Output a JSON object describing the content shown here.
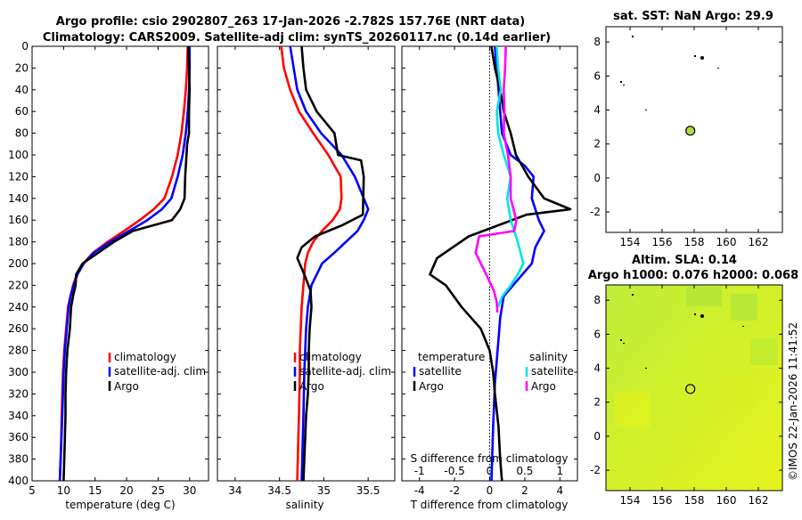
{
  "title_line1": "Argo profile: csio 2902807_263 17-Jan-2026 -2.782S 157.76E (NRT data)",
  "title_line2": "Climatology: CARS2009. Satellite-adj clim: synTS_20260117.nc (0.14d earlier)",
  "map1_title": "sat. SST: NaN Argo: 29.9",
  "map2_title1": "Altim. SLA: 0.14",
  "map2_title2": "Argo h1000: 0.076 h2000: 0.068",
  "timestamp": "©IMOS 22-Jan-2026 11:41:52",
  "legend_temp_header": "temperature",
  "legend_sal_header": "salinity",
  "colors": {
    "climatology": "#ff0000",
    "satellite": "#0000ff",
    "argo": "#000000",
    "sat_salinity": "#00e5e5",
    "argo_salinity": "#ff00ff",
    "sat_field": "#ffffff",
    "sla_field": "#c6f02c",
    "argo_marker": "#a8e040"
  },
  "chart_data": [
    {
      "type": "line",
      "id": "temp",
      "xlabel": "temperature (deg C)",
      "ylabel": "",
      "xlim": [
        5,
        33
      ],
      "ylim": [
        400,
        0
      ],
      "xticks": [
        5,
        10,
        15,
        20,
        25,
        30
      ],
      "yticks": [
        0,
        20,
        40,
        60,
        80,
        100,
        120,
        140,
        160,
        180,
        200,
        220,
        240,
        260,
        280,
        300,
        320,
        340,
        360,
        380,
        400
      ],
      "legend": [
        "climatology",
        "satellite-adj. clim",
        "Argo"
      ],
      "series": [
        {
          "name": "climatology",
          "color": "#ff0000",
          "x": [
            29.7,
            29.6,
            29.4,
            29.1,
            28.7,
            28.1,
            27.2,
            26.0,
            24.3,
            22.1,
            19.6,
            17.0,
            14.7,
            13.1,
            12.1,
            11.5,
            11.1,
            10.7,
            10.4,
            10.1,
            9.9,
            9.7,
            9.6,
            9.4
          ],
          "y": [
            0,
            20,
            40,
            60,
            80,
            100,
            120,
            140,
            150,
            160,
            170,
            180,
            190,
            200,
            210,
            220,
            230,
            240,
            260,
            280,
            300,
            340,
            370,
            400
          ]
        },
        {
          "name": "satellite-adj. clim",
          "color": "#0000ff",
          "x": [
            30.0,
            30.0,
            29.9,
            29.7,
            29.4,
            28.9,
            28.1,
            27.1,
            25.6,
            23.3,
            20.4,
            17.4,
            14.8,
            13.2,
            12.2,
            11.6,
            11.1,
            10.8,
            10.5,
            10.2,
            10.0,
            9.8,
            9.6,
            9.4
          ],
          "y": [
            0,
            20,
            40,
            60,
            80,
            100,
            120,
            140,
            150,
            160,
            170,
            180,
            190,
            200,
            210,
            220,
            230,
            240,
            260,
            280,
            300,
            340,
            370,
            400
          ]
        },
        {
          "name": "Argo",
          "color": "#000000",
          "x": [
            29.8,
            29.9,
            30.0,
            29.9,
            29.9,
            29.6,
            29.5,
            29.3,
            29.2,
            28.5,
            27.2,
            21.0,
            18.0,
            15.5,
            13.0,
            12.0,
            11.9,
            11.5,
            11.2,
            11.0,
            10.6,
            10.4,
            10.3,
            10.3,
            10.2,
            10.1,
            10.0
          ],
          "y": [
            0,
            20,
            40,
            60,
            80,
            90,
            100,
            120,
            140,
            150,
            160,
            170,
            180,
            190,
            200,
            210,
            220,
            230,
            240,
            260,
            280,
            300,
            320,
            340,
            360,
            380,
            400
          ]
        }
      ]
    },
    {
      "type": "line",
      "id": "sal",
      "xlabel": "salinity",
      "ylabel": "",
      "xlim": [
        33.8,
        35.8
      ],
      "ylim": [
        400,
        0
      ],
      "xticks": [
        34,
        34.5,
        35,
        35.5
      ],
      "yticks": [],
      "legend": [
        "climatology",
        "satellite-adj. clim",
        "Argo"
      ],
      "series": [
        {
          "name": "climatology",
          "color": "#ff0000",
          "x": [
            34.52,
            34.55,
            34.62,
            34.72,
            34.88,
            35.05,
            35.19,
            35.2,
            35.18,
            35.1,
            34.98,
            34.88,
            34.82,
            34.79,
            34.77,
            34.75,
            34.74,
            34.73,
            34.73,
            34.72,
            34.71,
            34.7
          ],
          "y": [
            0,
            20,
            40,
            60,
            80,
            100,
            120,
            140,
            150,
            160,
            170,
            180,
            190,
            200,
            220,
            240,
            260,
            280,
            300,
            340,
            370,
            400
          ]
        },
        {
          "name": "satellite-adj. clim",
          "color": "#0000ff",
          "x": [
            34.62,
            34.66,
            34.7,
            34.8,
            34.97,
            35.2,
            35.35,
            35.45,
            35.5,
            35.45,
            35.38,
            35.25,
            35.12,
            34.98,
            34.86,
            34.82,
            34.8,
            34.79,
            34.78,
            34.77,
            34.76,
            34.75
          ],
          "y": [
            0,
            20,
            40,
            60,
            80,
            100,
            120,
            140,
            150,
            160,
            170,
            180,
            190,
            200,
            220,
            240,
            260,
            280,
            300,
            340,
            370,
            400
          ]
        },
        {
          "name": "Argo",
          "color": "#000000",
          "x": [
            34.75,
            34.77,
            34.8,
            34.92,
            35.12,
            35.16,
            35.42,
            35.45,
            35.44,
            35.2,
            34.9,
            34.75,
            34.7,
            34.78,
            34.85,
            34.86,
            34.84,
            34.83,
            34.83,
            34.82,
            34.8,
            34.79,
            34.78,
            34.77
          ],
          "y": [
            0,
            20,
            40,
            60,
            80,
            100,
            105,
            120,
            155,
            165,
            175,
            185,
            195,
            210,
            225,
            240,
            260,
            280,
            300,
            320,
            340,
            360,
            380,
            400
          ]
        }
      ]
    },
    {
      "type": "line",
      "id": "diff",
      "xlabel": "T difference from climatology",
      "x2label": "S difference from climatology",
      "xlim": [
        -5,
        5
      ],
      "ylim": [
        400,
        0
      ],
      "xticks": [
        -4,
        -2,
        0,
        2,
        4
      ],
      "x2ticks": [
        -1,
        -0.5,
        0,
        0.5,
        1
      ],
      "x2lim": [
        -1.25,
        1.25
      ],
      "yticks": [],
      "legend_temperature": [
        "satellite",
        "Argo"
      ],
      "legend_salinity": [
        "satellite",
        "Argo"
      ],
      "series": [
        {
          "name": "T satellite",
          "color": "#0000ff",
          "axis": "T",
          "x": [
            0.3,
            0.4,
            0.5,
            0.6,
            0.7,
            1.2,
            2.0,
            2.5,
            2.4,
            2.8,
            3.1,
            2.6,
            2.4,
            1.6,
            0.8,
            0.6,
            0.5,
            0.4,
            0.3,
            0.2,
            0.1
          ],
          "y": [
            0,
            20,
            40,
            60,
            80,
            100,
            110,
            120,
            140,
            160,
            170,
            185,
            200,
            215,
            230,
            250,
            270,
            290,
            310,
            350,
            400
          ]
        },
        {
          "name": "T Argo",
          "color": "#000000",
          "axis": "T",
          "x": [
            0.1,
            0.3,
            0.6,
            0.8,
            1.2,
            1.5,
            2.2,
            3.1,
            4.6,
            2.1,
            -1.2,
            -3.0,
            -3.4,
            -2.5,
            -1.6,
            -0.5,
            0.0,
            0.2,
            0.3,
            0.5,
            0.6,
            0.7
          ],
          "y": [
            0,
            20,
            40,
            60,
            80,
            100,
            120,
            140,
            150,
            155,
            175,
            195,
            210,
            220,
            240,
            260,
            280,
            300,
            320,
            350,
            380,
            400
          ]
        },
        {
          "name": "S satellite",
          "color": "#00e5e5",
          "axis": "S",
          "x": [
            0.1,
            0.12,
            0.16,
            0.1,
            0.12,
            0.2,
            0.3,
            0.25,
            0.3,
            0.4,
            0.48,
            0.4,
            0.3,
            0.18,
            0.12
          ],
          "y": [
            0,
            20,
            40,
            60,
            80,
            100,
            120,
            140,
            160,
            180,
            200,
            210,
            220,
            230,
            240
          ]
        },
        {
          "name": "S Argo",
          "color": "#ff00ff",
          "axis": "S",
          "x": [
            0.23,
            0.22,
            0.2,
            0.21,
            0.2,
            0.26,
            0.3,
            0.3,
            0.38,
            0.35,
            -0.15,
            -0.2,
            -0.05,
            0.06,
            0.1,
            0.11
          ],
          "y": [
            0,
            20,
            40,
            60,
            80,
            100,
            120,
            140,
            160,
            170,
            175,
            190,
            210,
            225,
            235,
            245
          ]
        }
      ]
    },
    {
      "type": "heatmap",
      "id": "sst_map",
      "title": "sat. SST: NaN Argo: 29.9",
      "xlim": [
        152.5,
        163.5
      ],
      "ylim": [
        -3.2,
        8.9
      ],
      "xticks": [
        154,
        156,
        158,
        160,
        162
      ],
      "yticks": [
        -2,
        0,
        2,
        4,
        6,
        8
      ],
      "argo_position": {
        "lon": 157.76,
        "lat": 2.78
      }
    },
    {
      "type": "heatmap",
      "id": "sla_map",
      "title": "Altim. SLA: 0.14 / Argo h1000: 0.076 h2000: 0.068",
      "xlim": [
        152.5,
        163.5
      ],
      "ylim": [
        -3.2,
        8.9
      ],
      "xticks": [
        154,
        156,
        158,
        160,
        162
      ],
      "yticks": [
        -2,
        0,
        2,
        4,
        6,
        8
      ],
      "argo_position": {
        "lon": 157.76,
        "lat": 2.78
      }
    }
  ]
}
